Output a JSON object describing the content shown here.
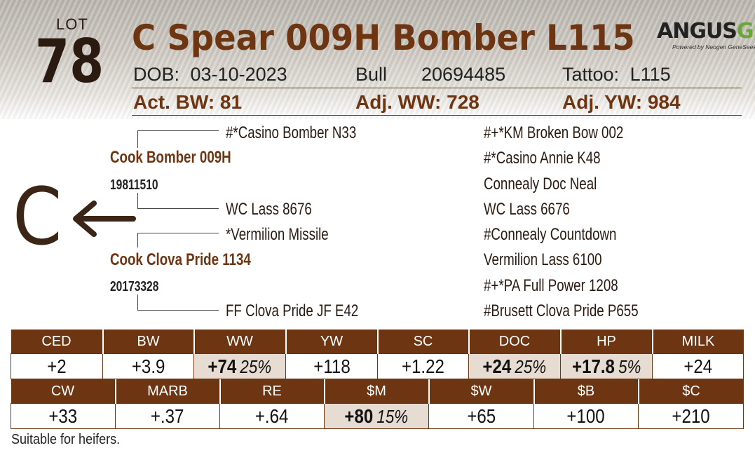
{
  "lot": {
    "label": "LOT",
    "number": "78"
  },
  "title": "C Spear 009H Bomber L115",
  "logo": {
    "main": "ANGUS",
    "accent": "GS",
    "sub": "Powered by Neogen GeneSeek"
  },
  "info": {
    "dob_label": "DOB:",
    "dob": "03-10-2023",
    "sex": "Bull",
    "reg": "20694485",
    "tattoo_label": "Tattoo:",
    "tattoo": "L115"
  },
  "weights": {
    "bw": "Act. BW: 81",
    "ww": "Adj. WW: 728",
    "yw": "Adj. YW: 984"
  },
  "pedigree": {
    "sire": {
      "name": "Cook Bomber 009H",
      "reg": "19811510"
    },
    "dam": {
      "name": "Cook Clova Pride 1134",
      "reg": "20173328"
    },
    "gen2": [
      "#*Casino Bomber N33",
      "WC Lass 8676",
      "*Vermilion Missile",
      "FF Clova Pride JF E42"
    ],
    "gen3": [
      "#+*KM Broken Bow 002",
      "#*Casino Annie K48",
      "Connealy Doc Neal",
      "WC Lass 6676",
      "#Connealy Countdown",
      "Vermilion Lass 6100",
      "#+*PA Full Power 1208",
      "#Brusett Clova Pride P655"
    ]
  },
  "brand": {
    "letter": "C"
  },
  "epd_row1": {
    "headers": [
      "CED",
      "BW",
      "WW",
      "YW",
      "SC",
      "DOC",
      "HP",
      "MILK"
    ],
    "values": [
      "+2",
      "+3.9",
      "+74",
      "+118",
      "+1.22",
      "+24",
      "+17.8",
      "+24"
    ],
    "pcts": [
      "",
      "",
      "25%",
      "",
      "",
      "25%",
      "5%",
      ""
    ]
  },
  "epd_row2": {
    "headers": [
      "CW",
      "MARB",
      "RE",
      "$M",
      "$W",
      "$B",
      "$C"
    ],
    "values": [
      "+33",
      "+.37",
      "+.64",
      "+80",
      "+65",
      "+100",
      "+210"
    ],
    "pcts": [
      "",
      "",
      "",
      "15%",
      "",
      "",
      ""
    ]
  },
  "note": "Suitable for heifers.",
  "colors": {
    "brown": "#6e3512",
    "highlight": "#e6dcd1",
    "dark": "#2a1a10",
    "logo_green": "#6aa63a"
  }
}
